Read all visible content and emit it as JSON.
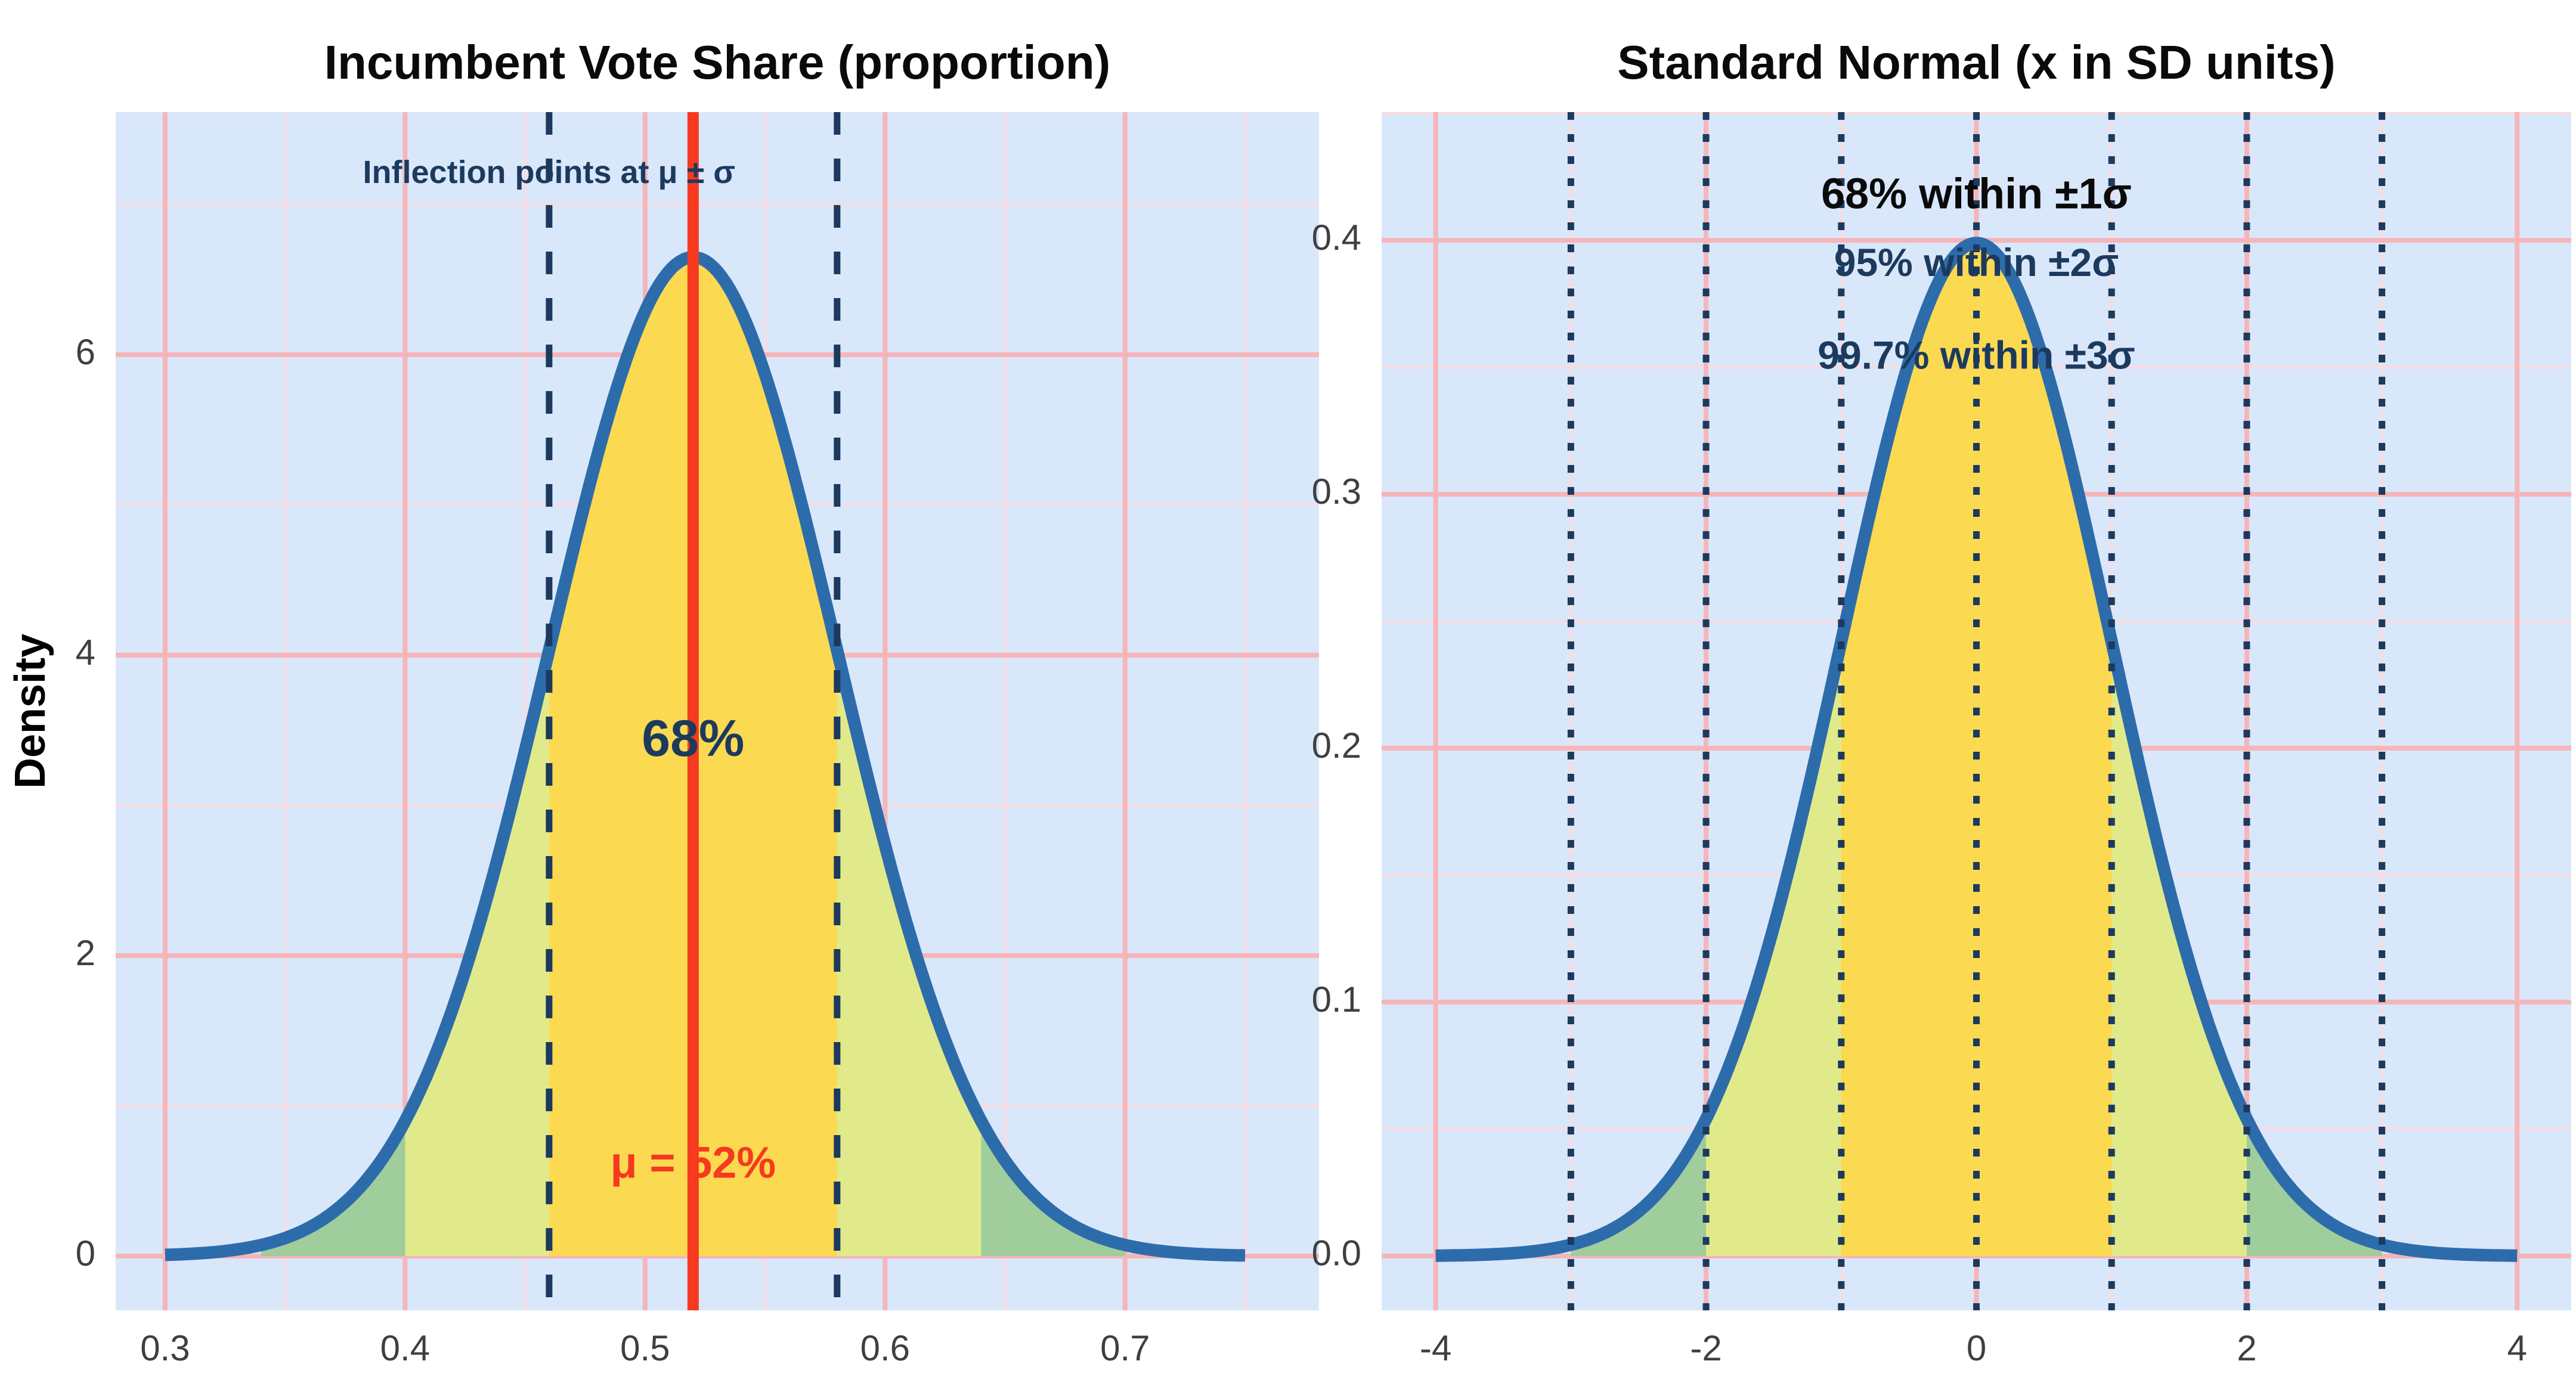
{
  "style": {
    "page_bg": "#ffffff",
    "plot_bg": "#d9e7fb",
    "grid_major": "#f6b5b8",
    "grid_minor": "#fcdade",
    "curve_color": "#2d6cab",
    "curve_width": 21,
    "tick_color": "#3f3f3f",
    "navy": "#1c3a5e",
    "red": "#f6391f",
    "band_gold": "#fcd84f",
    "band_yellowgreen": "#e3ea89",
    "band_green": "#9ecb99",
    "title_color": "#0a0a0a"
  },
  "chart_data": [
    {
      "type": "area",
      "id": "vote-share",
      "title": "Incumbent Vote Share (proportion)",
      "ylabel": "Density",
      "x_range": [
        0.2794,
        0.7808
      ],
      "y_range": [
        -0.361,
        7.615
      ],
      "gaussian": {
        "mean": 0.52,
        "sd": 0.06,
        "curve_from": 0.3,
        "curve_to": 0.75,
        "peak_density": 6.65
      },
      "bands": [
        {
          "sigma": 1,
          "color": "#fcd84f",
          "coverage": "68%"
        },
        {
          "sigma": 2,
          "color": "#e3ea89",
          "coverage": "95%"
        },
        {
          "sigma": 3,
          "color": "#9ecb99",
          "coverage": "99.7%"
        }
      ],
      "x_ticks_major": [
        {
          "v": 0.3,
          "label": "0.3"
        },
        {
          "v": 0.4,
          "label": "0.4"
        },
        {
          "v": 0.5,
          "label": "0.5"
        },
        {
          "v": 0.6,
          "label": "0.6"
        },
        {
          "v": 0.7,
          "label": "0.7"
        }
      ],
      "x_ticks_minor": [
        0.35,
        0.45,
        0.55,
        0.65,
        0.75
      ],
      "y_ticks_major": [
        {
          "v": 0,
          "label": "0"
        },
        {
          "v": 2,
          "label": "2"
        },
        {
          "v": 4,
          "label": "4"
        },
        {
          "v": 6,
          "label": "6"
        }
      ],
      "y_ticks_minor": [
        1,
        3,
        5,
        7
      ],
      "vlines": [
        {
          "xs": [
            0.52
          ],
          "color": "#f6391f",
          "width": 19,
          "dash": "",
          "meaning": "mean"
        },
        {
          "xs": [
            0.46,
            0.58
          ],
          "color": "#1c3a5e",
          "width": 11,
          "dash": "38 40",
          "meaning": "inflection points mu plus/minus sigma"
        }
      ],
      "annotations": [
        {
          "text": "Inflection points at μ ± σ",
          "x": 0.46,
          "y": 7.2,
          "color": "#1c3a5e",
          "size": 54,
          "weight": "bold"
        },
        {
          "text": "68%",
          "x": 0.52,
          "y": 3.42,
          "color": "#1c3a5e",
          "size": 86,
          "weight": "bold"
        },
        {
          "text": "μ = 52%",
          "x": 0.52,
          "y": 0.6,
          "color": "#f6391f",
          "size": 74,
          "weight": "bold"
        }
      ]
    },
    {
      "type": "area",
      "id": "standard-normal",
      "title": "Standard Normal (x in SD units)",
      "ylabel": null,
      "x_range": [
        -4.4,
        4.4
      ],
      "y_range": [
        -0.0214,
        0.4505
      ],
      "gaussian": {
        "mean": 0,
        "sd": 1,
        "curve_from": -4,
        "curve_to": 4,
        "peak_density": 0.3989
      },
      "bands": [
        {
          "sigma": 1,
          "color": "#fcd84f",
          "coverage": "68%"
        },
        {
          "sigma": 2,
          "color": "#e3ea89",
          "coverage": "95%"
        },
        {
          "sigma": 3,
          "color": "#9ecb99",
          "coverage": "99.7%"
        }
      ],
      "x_ticks_major": [
        {
          "v": -4,
          "label": "-4"
        },
        {
          "v": -2,
          "label": "-2"
        },
        {
          "v": 0,
          "label": "0"
        },
        {
          "v": 2,
          "label": "2"
        },
        {
          "v": 4,
          "label": "4"
        }
      ],
      "x_ticks_minor": [
        -3,
        -1,
        1,
        3
      ],
      "y_ticks_major": [
        {
          "v": 0.0,
          "label": "0.0"
        },
        {
          "v": 0.1,
          "label": "0.1"
        },
        {
          "v": 0.2,
          "label": "0.2"
        },
        {
          "v": 0.3,
          "label": "0.3"
        },
        {
          "v": 0.4,
          "label": "0.4"
        }
      ],
      "y_ticks_minor": [
        0.05,
        0.15,
        0.25,
        0.35,
        0.45
      ],
      "vlines": [
        {
          "xs": [
            -3,
            -2,
            -1,
            0,
            1,
            2,
            3
          ],
          "color": "#1c3a5e",
          "width": 11,
          "dash": "13 24",
          "meaning": "sigma boundaries"
        }
      ],
      "annotations": [
        {
          "text": "68% within ±1σ",
          "x": 0,
          "y": 0.417,
          "color": "#0a0a0a",
          "size": 72,
          "weight": "bold"
        },
        {
          "text": "95% within ±2σ",
          "x": 0,
          "y": 0.39,
          "color": "#1c3a5e",
          "size": 66,
          "weight": "bold"
        },
        {
          "text": "99.7% within ±3σ",
          "x": 0,
          "y": 0.3535,
          "color": "#1c3a5e",
          "size": 66,
          "weight": "bold"
        }
      ]
    }
  ]
}
